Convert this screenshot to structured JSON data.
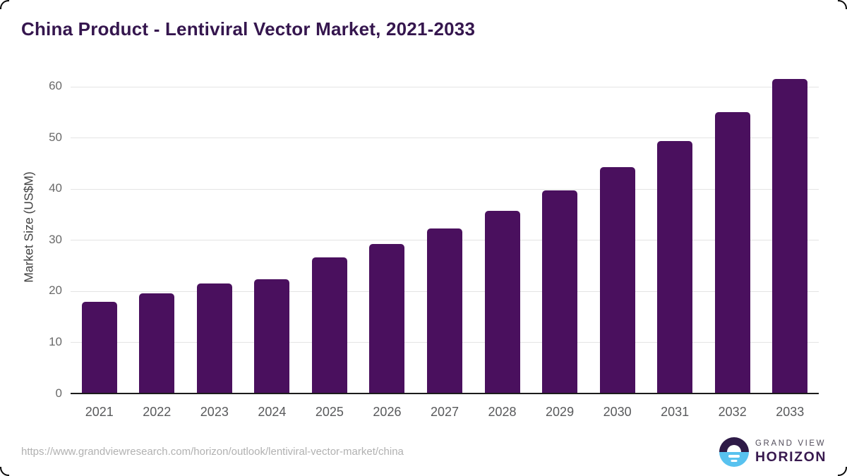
{
  "title": "China Product - Lentiviral Vector Market, 2021-2033",
  "chart_data": {
    "type": "bar",
    "title": "China Product - Lentiviral Vector Market, 2021-2033",
    "categories": [
      "2021",
      "2022",
      "2023",
      "2024",
      "2025",
      "2026",
      "2027",
      "2028",
      "2029",
      "2030",
      "2031",
      "2032",
      "2033"
    ],
    "values": [
      17.9,
      19.6,
      21.5,
      22.3,
      26.6,
      29.2,
      32.2,
      35.7,
      39.7,
      44.2,
      49.3,
      55.0,
      61.4
    ],
    "xlabel": "",
    "ylabel": "Market Size (US$M)",
    "yticks": [
      0,
      10,
      20,
      30,
      40,
      50,
      60
    ],
    "ylim": [
      0,
      63
    ],
    "grid": "horizontal-only",
    "legend_position": "none",
    "bar_color": "#4a105e"
  },
  "footer": {
    "source_url": "https://www.grandviewresearch.com/horizon/outlook/lentiviral-vector-market/china"
  },
  "logo": {
    "icon": "horizon-sunset-circle-icon",
    "line1": "GRAND VIEW",
    "line2": "HORIZON"
  },
  "colors": {
    "bar": "#4a105e",
    "title_text": "#35164e",
    "x_tick_text": "#58595b",
    "y_tick_text": "#6a6a6a",
    "gridline": "#e4e4e4",
    "axis_line": "#1c1c1c",
    "url_text": "#b1b1b1",
    "logo_purple": "#2e1a47",
    "logo_blue": "#58c2ef"
  }
}
